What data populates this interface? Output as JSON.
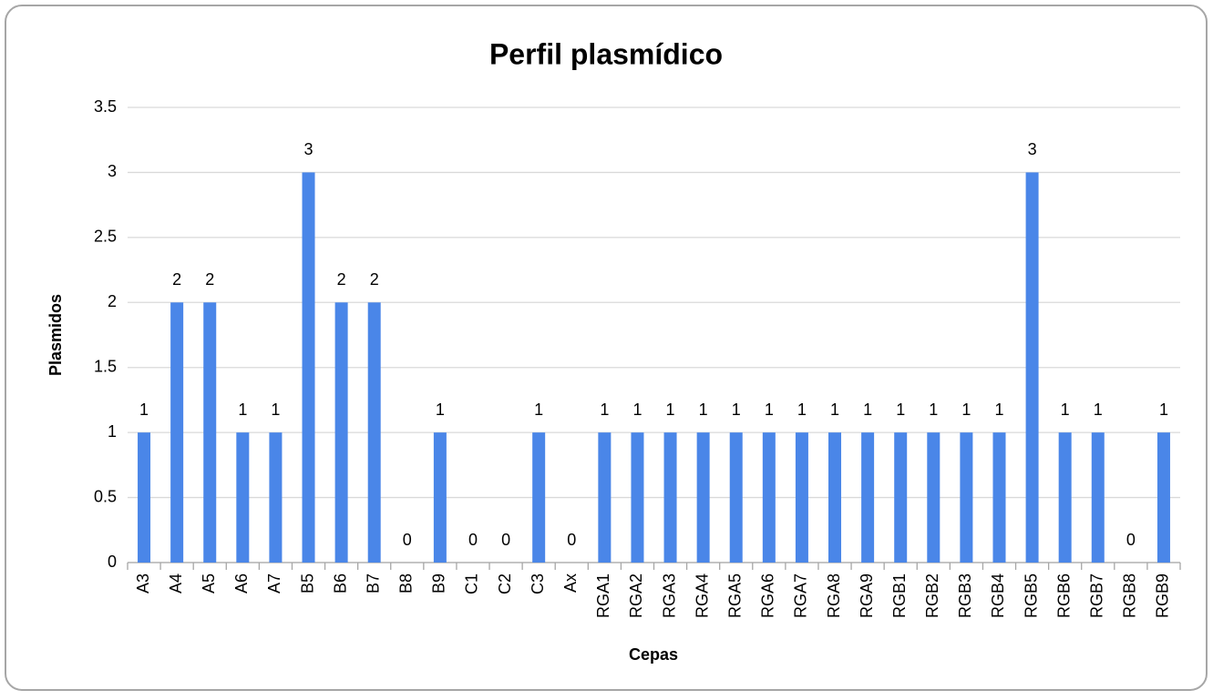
{
  "chart_data": {
    "type": "bar",
    "title": "Perfil plasmídico",
    "x_label": "Cepas",
    "y_label": "Plasmidos",
    "categories": [
      "A3",
      "A4",
      "A5",
      "A6",
      "A7",
      "B5",
      "B6",
      "B7",
      "B8",
      "B9",
      "C1",
      "C2",
      "C3",
      "Ax",
      "RGA1",
      "RGA2",
      "RGA3",
      "RGA4",
      "RGA5",
      "RGA6",
      "RGA7",
      "RGA8",
      "RGA9",
      "RGB1",
      "RGB2",
      "RGB3",
      "RGB4",
      "RGB5",
      "RGB6",
      "RGB7",
      "RGB8",
      "RGB9"
    ],
    "values": [
      1,
      2,
      2,
      1,
      1,
      3,
      2,
      2,
      0,
      1,
      0,
      0,
      1,
      0,
      1,
      1,
      1,
      1,
      1,
      1,
      1,
      1,
      1,
      1,
      1,
      1,
      1,
      3,
      1,
      1,
      0,
      1
    ],
    "color": "#4a86e8",
    "ylim": [
      0,
      3.5
    ],
    "yticks": [
      0,
      0.5,
      1,
      1.5,
      2,
      2.5,
      3,
      3.5
    ],
    "grid": true,
    "data_labels": true
  }
}
